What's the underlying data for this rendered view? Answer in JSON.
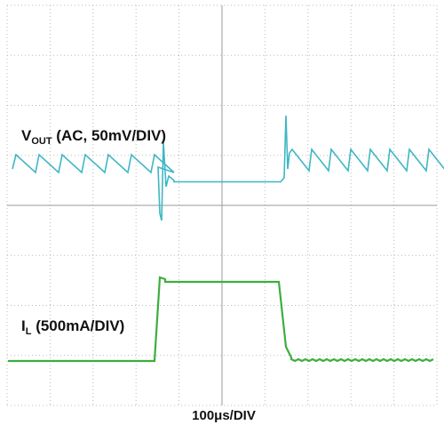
{
  "labels": {
    "vout_symbol": "V",
    "vout_subscript": "OUT",
    "vout_scale": " (AC, 50mV/DIV)",
    "il_symbol": "I",
    "il_subscript": "L",
    "il_scale": " (500mA/DIV)",
    "timebase": "100μs/DIV"
  }
}
